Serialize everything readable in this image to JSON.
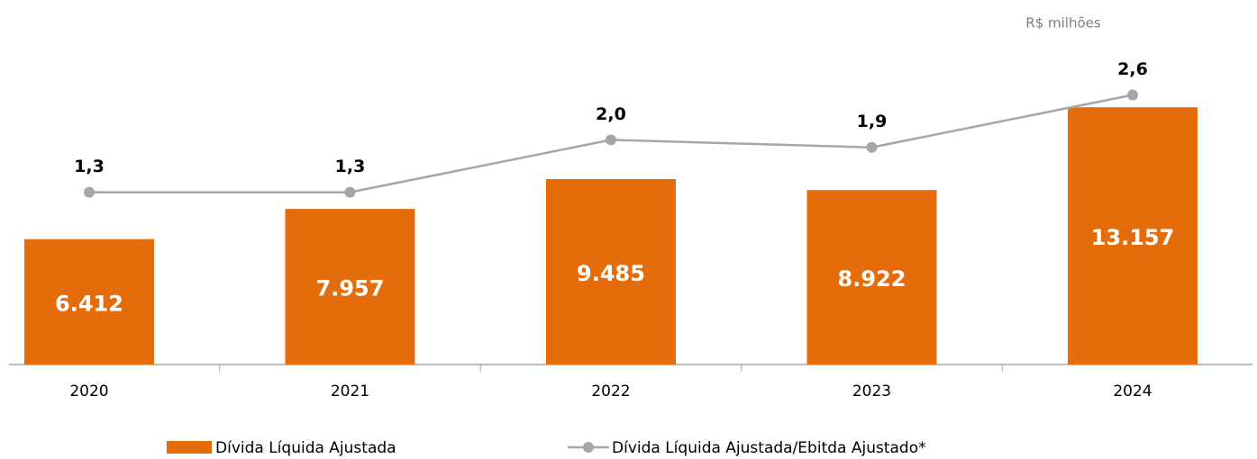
{
  "chart_data": {
    "type": "bar",
    "subtitle": "R$ milhões",
    "categories": [
      "2020",
      "2021",
      "2022",
      "2023",
      "2024"
    ],
    "series": [
      {
        "name": "Dívida Líquida Ajustada",
        "type": "bar",
        "color": "#e46c0a",
        "values": [
          6412,
          7957,
          9485,
          8922,
          13157
        ],
        "value_labels": [
          "6.412",
          "7.957",
          "9.485",
          "8.922",
          "13.157"
        ]
      },
      {
        "name": "Dívida Líquida Ajustada/Ebitda Ajustado*",
        "type": "line",
        "axis": "y2",
        "color": "#a6a6a6",
        "values": [
          1.3,
          1.3,
          2.0,
          1.9,
          2.6
        ],
        "value_labels": [
          "1,3",
          "1,3",
          "2,0",
          "1,9",
          "2,6"
        ]
      }
    ],
    "ylim": [
      0,
      18000
    ],
    "y2lim": [
      -1,
      3.7
    ],
    "legend": "bottom"
  }
}
